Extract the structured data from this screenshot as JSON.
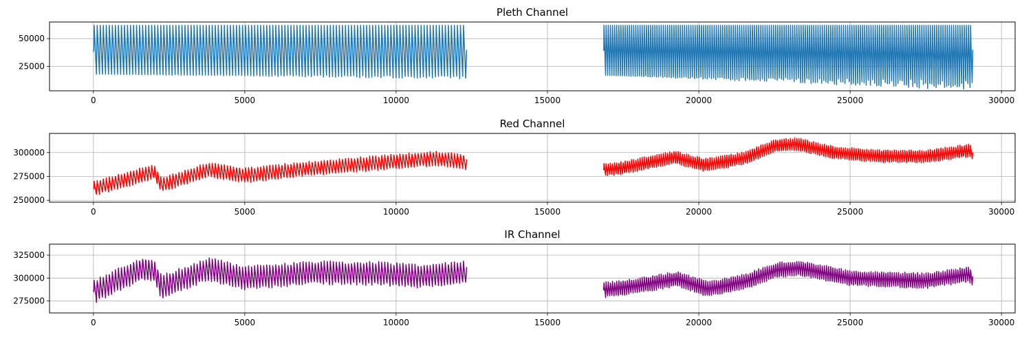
{
  "chart_data": [
    {
      "type": "line",
      "title": "Pleth Channel",
      "color": "#1f77b4",
      "xlim": [
        -1450,
        30450
      ],
      "ylim": [
        3000,
        65000
      ],
      "xticks": [
        0,
        5000,
        10000,
        15000,
        20000,
        25000,
        30000
      ],
      "xtick_labels": [
        "0",
        "5000",
        "10000",
        "15000",
        "20000",
        "25000",
        "30000"
      ],
      "yticks": [
        25000,
        50000
      ],
      "ytick_labels": [
        "25000",
        "50000"
      ],
      "grid": true,
      "segments": [
        {
          "x_start": 0,
          "x_end": 12330,
          "period": 100,
          "peak": 62000,
          "trough_start": 18000,
          "trough_end": 15000,
          "start_value": 38000,
          "end_value": 40000
        },
        {
          "x_start": 16850,
          "x_end": 29050,
          "period": 70,
          "peak": 62000,
          "trough_start": 17000,
          "trough_end": 8000,
          "start_value": 40000,
          "end_value": 40000
        }
      ]
    },
    {
      "type": "line",
      "title": "Red Channel",
      "color": "#ff0000",
      "xlim": [
        -1450,
        30450
      ],
      "ylim": [
        248000,
        320000
      ],
      "xticks": [
        0,
        5000,
        10000,
        15000,
        20000,
        25000,
        30000
      ],
      "xtick_labels": [
        "0",
        "5000",
        "10000",
        "15000",
        "20000",
        "25000",
        "30000"
      ],
      "yticks": [
        250000,
        275000,
        300000
      ],
      "ytick_labels": [
        "250000",
        "275000",
        "300000"
      ],
      "grid": true,
      "segments": [
        {
          "x_start": 0,
          "x_end": 12330,
          "period": 100,
          "baseline": [
            [
              0,
              262000
            ],
            [
              2000,
              280000
            ],
            [
              2250,
              266000
            ],
            [
              3800,
              282000
            ],
            [
              5000,
              276000
            ],
            [
              7000,
              283000
            ],
            [
              9000,
              288000
            ],
            [
              11300,
              294000
            ],
            [
              12330,
              290000
            ]
          ],
          "amplitude": 14000,
          "start_value": 262000,
          "end_value": 293000
        },
        {
          "x_start": 16850,
          "x_end": 29050,
          "period": 70,
          "baseline": [
            [
              16850,
              282000
            ],
            [
              17500,
              284000
            ],
            [
              19200,
              295000
            ],
            [
              20200,
              287000
            ],
            [
              21500,
              294000
            ],
            [
              22500,
              307000
            ],
            [
              23200,
              309000
            ],
            [
              24500,
              300000
            ],
            [
              26000,
              296000
            ],
            [
              27500,
              296000
            ],
            [
              28900,
              302000
            ],
            [
              29050,
              300000
            ]
          ],
          "amplitude": 12000,
          "start_value": 283000,
          "end_value": 300000
        }
      ]
    },
    {
      "type": "line",
      "title": "IR Channel",
      "color": "#800080",
      "xlim": [
        -1450,
        30450
      ],
      "ylim": [
        262000,
        337000
      ],
      "xticks": [
        0,
        5000,
        10000,
        15000,
        20000,
        25000,
        30000
      ],
      "xtick_labels": [
        "0",
        "5000",
        "10000",
        "15000",
        "20000",
        "25000",
        "30000"
      ],
      "yticks": [
        275000,
        300000,
        325000
      ],
      "ytick_labels": [
        "275000",
        "300000",
        "325000"
      ],
      "grid": true,
      "segments": [
        {
          "x_start": 0,
          "x_end": 12330,
          "period": 100,
          "baseline": [
            [
              0,
              285000
            ],
            [
              1600,
              310000
            ],
            [
              2000,
              308000
            ],
            [
              2250,
              290000
            ],
            [
              3800,
              310000
            ],
            [
              5000,
              300000
            ],
            [
              7300,
              306000
            ],
            [
              9500,
              305000
            ],
            [
              10800,
              302000
            ],
            [
              12330,
              306000
            ]
          ],
          "amplitude": 23000,
          "start_value": 287000,
          "end_value": 312000
        },
        {
          "x_start": 16850,
          "x_end": 29050,
          "period": 70,
          "baseline": [
            [
              16850,
              287000
            ],
            [
              17800,
              291000
            ],
            [
              19300,
              299000
            ],
            [
              20300,
              288000
            ],
            [
              21500,
              296000
            ],
            [
              22600,
              309000
            ],
            [
              23300,
              311000
            ],
            [
              25000,
              300000
            ],
            [
              27500,
              297000
            ],
            [
              28900,
              304000
            ],
            [
              29050,
              300000
            ]
          ],
          "amplitude": 15000,
          "start_value": 290000,
          "end_value": 302000
        }
      ]
    }
  ]
}
